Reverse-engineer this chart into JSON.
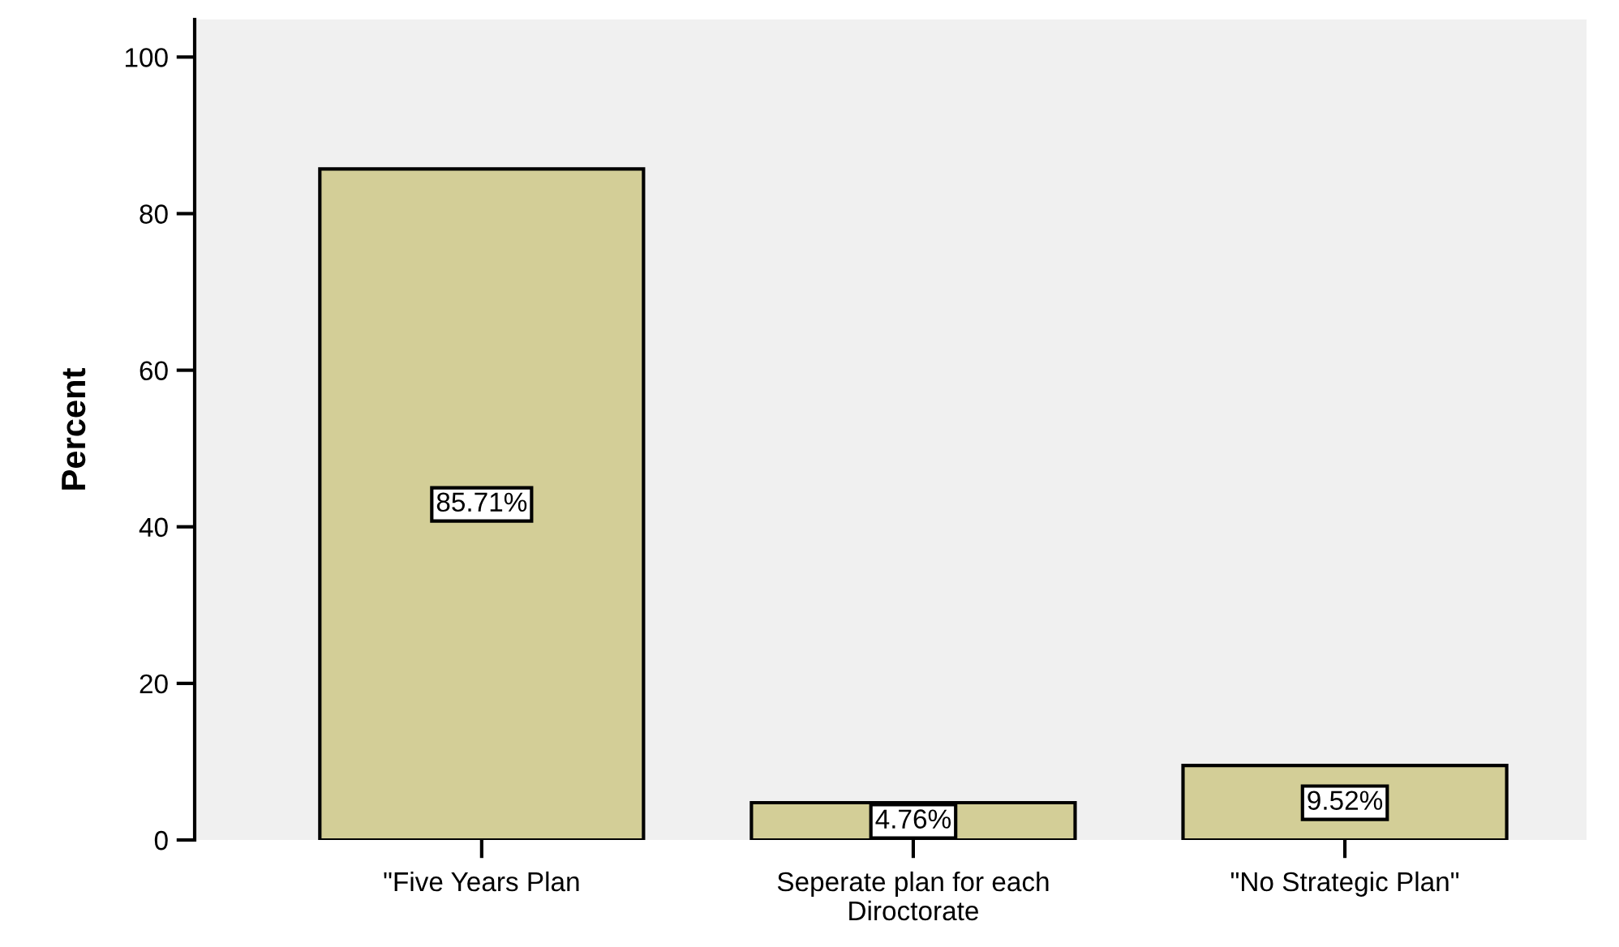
{
  "chart_data": {
    "type": "bar",
    "ylabel": "Percent",
    "categories": [
      "\"Five Years Plan",
      "Seperate plan for each\nDiroctorate",
      "\"No Strategic Plan\""
    ],
    "values": [
      85.71,
      4.76,
      9.52
    ],
    "value_labels": [
      "85.71%",
      "4.76%",
      "9.52%"
    ],
    "color": "#d3ce97",
    "ylim": [
      0,
      104.8
    ],
    "yticks": [
      0,
      20,
      40,
      60,
      80,
      100
    ],
    "grid": false,
    "legend": false
  }
}
